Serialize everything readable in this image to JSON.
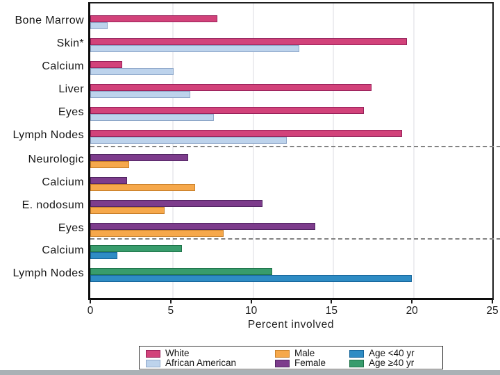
{
  "chart_data": {
    "type": "bar",
    "orientation": "horizontal",
    "xlabel": "Percent involved",
    "xlim": [
      0,
      25
    ],
    "xticks": [
      "0",
      "5",
      "10",
      "15",
      "20",
      "25"
    ],
    "grid": "light vertical gridlines at 5, 10, 15, 20",
    "legend_position": "bottom",
    "rows": [
      {
        "label": "Bone Marrow",
        "series": [
          {
            "name": "White",
            "value": 7.9
          },
          {
            "name": "African American",
            "value": 1.1
          }
        ]
      },
      {
        "label": "Skin*",
        "series": [
          {
            "name": "White",
            "value": 19.7
          },
          {
            "name": "African American",
            "value": 13.0
          }
        ]
      },
      {
        "label": "Calcium",
        "series": [
          {
            "name": "White",
            "value": 2.0
          },
          {
            "name": "African American",
            "value": 5.2
          }
        ]
      },
      {
        "label": "Liver",
        "series": [
          {
            "name": "White",
            "value": 17.5
          },
          {
            "name": "African American",
            "value": 6.2
          }
        ]
      },
      {
        "label": "Eyes",
        "series": [
          {
            "name": "White",
            "value": 17.0
          },
          {
            "name": "African American",
            "value": 7.7
          }
        ]
      },
      {
        "label": "Lymph Nodes",
        "series": [
          {
            "name": "White",
            "value": 19.4
          },
          {
            "name": "African American",
            "value": 12.2
          }
        ]
      },
      {
        "label": "Neurologic",
        "series": [
          {
            "name": "Female",
            "value": 6.1
          },
          {
            "name": "Male",
            "value": 2.4
          }
        ]
      },
      {
        "label": "Calcium",
        "series": [
          {
            "name": "Female",
            "value": 2.3
          },
          {
            "name": "Male",
            "value": 6.5
          }
        ]
      },
      {
        "label": "E. nodosum",
        "series": [
          {
            "name": "Female",
            "value": 10.7
          },
          {
            "name": "Male",
            "value": 4.6
          }
        ]
      },
      {
        "label": "Eyes",
        "series": [
          {
            "name": "Female",
            "value": 14.0
          },
          {
            "name": "Male",
            "value": 8.3
          }
        ]
      },
      {
        "label": "Calcium",
        "series": [
          {
            "name": "Age ≥40 yr",
            "value": 5.7
          },
          {
            "name": "Age <40 yr",
            "value": 1.7
          }
        ]
      },
      {
        "label": "Lymph Nodes",
        "series": [
          {
            "name": "Age ≥40 yr",
            "value": 11.3
          },
          {
            "name": "Age <40 yr",
            "value": 20.0
          }
        ]
      }
    ],
    "separators_after_row": [
      5,
      9
    ]
  },
  "series_colors": {
    "White": {
      "fill": "#d2427a",
      "stroke": "#97215a"
    },
    "African American": {
      "fill": "#bdd3ec",
      "stroke": "#8ea7c9"
    },
    "Male": {
      "fill": "#f6a84b",
      "stroke": "#c9802a"
    },
    "Female": {
      "fill": "#7d3c8c",
      "stroke": "#512562"
    },
    "Age <40 yr": {
      "fill": "#2e8cc4",
      "stroke": "#17669b"
    },
    "Age ≥40 yr": {
      "fill": "#389c6c",
      "stroke": "#1f7349"
    }
  },
  "legend": {
    "items": [
      {
        "label": "White"
      },
      {
        "label": "African American"
      },
      {
        "label": "Male"
      },
      {
        "label": "Female"
      },
      {
        "label": "Age <40 yr"
      },
      {
        "label": "Age ≥40 yr"
      }
    ]
  }
}
